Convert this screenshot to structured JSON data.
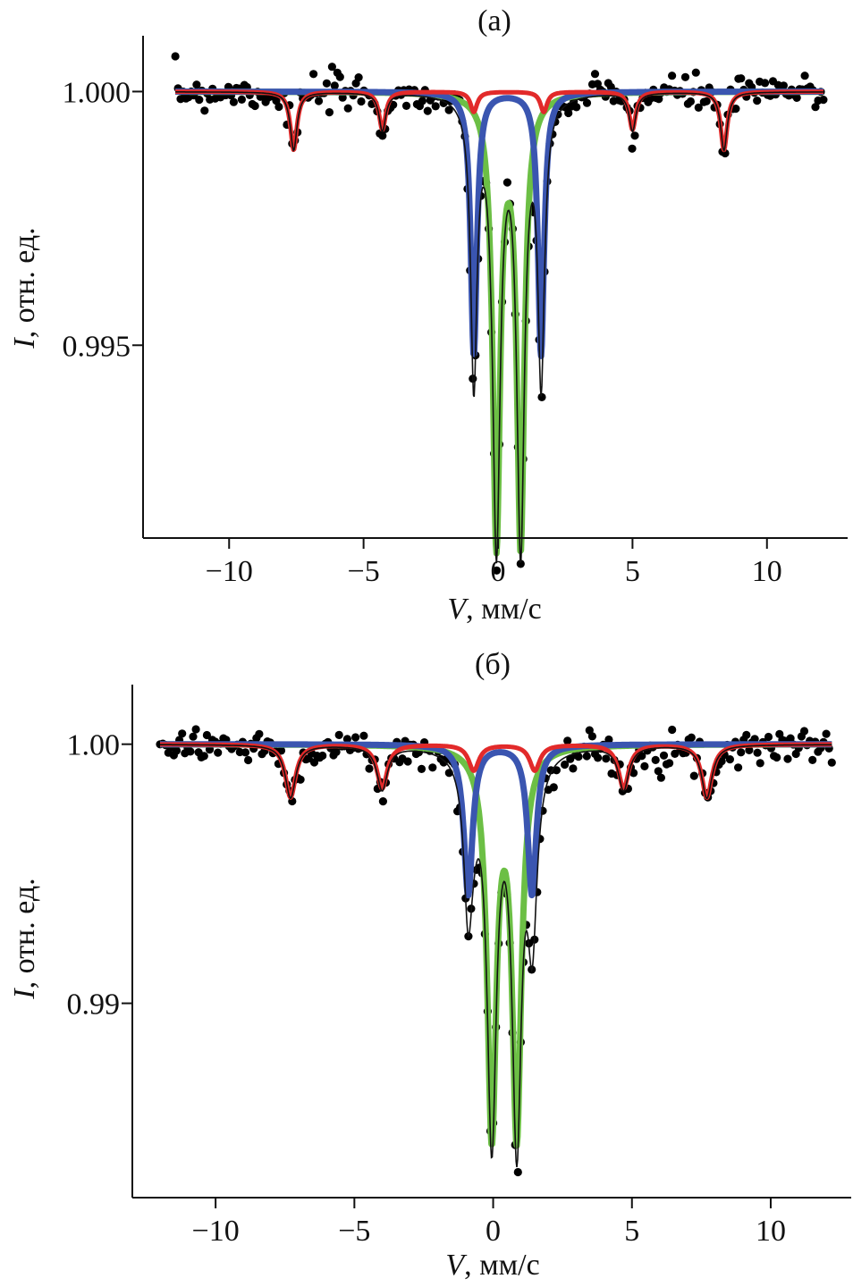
{
  "colors": {
    "data_points": "#000000",
    "fit_total": "#111111",
    "doublet_green": "#6cbf45",
    "doublet_blue": "#3a55b0",
    "sextet_red": "#e22a2a"
  },
  "chart_data": [
    {
      "type": "scatter",
      "panel_label": "(a)",
      "xlabel_var": "V",
      "xlabel_unit": ", мм/с",
      "ylabel_var": "I",
      "ylabel_unit": ", отн. ед.",
      "xlim": [
        -13.2,
        13.0
      ],
      "ylim": [
        0.9912,
        1.0011
      ],
      "xticks": [
        -10,
        -5,
        0,
        5,
        10
      ],
      "xtick_labels": [
        "−10",
        "−5",
        "0",
        "5",
        "10"
      ],
      "yticks": [
        0.995,
        1.0
      ],
      "ytick_labels": [
        "0.995",
        "1.000"
      ],
      "x_range": [
        -12.0,
        12.1
      ],
      "series": [
        {
          "role": "doublet",
          "color": "green",
          "components": [
            {
              "center": -0.06,
              "width": 0.34,
              "depth": 0.0088
            },
            {
              "center": 0.84,
              "width": 0.34,
              "depth": 0.0088
            }
          ]
        },
        {
          "role": "doublet",
          "color": "blue",
          "components": [
            {
              "center": -0.9,
              "width": 0.28,
              "depth": 0.0052
            },
            {
              "center": 1.6,
              "width": 0.28,
              "depth": 0.0052
            }
          ]
        },
        {
          "role": "sextet",
          "color": "red",
          "components": [
            {
              "center": -7.6,
              "width": 0.3,
              "depth": 0.00115
            },
            {
              "center": -4.3,
              "width": 0.3,
              "depth": 0.00075
            },
            {
              "center": -0.9,
              "width": 0.3,
              "depth": 0.0004
            },
            {
              "center": 1.7,
              "width": 0.3,
              "depth": 0.0004
            },
            {
              "center": 5.0,
              "width": 0.3,
              "depth": 0.00075
            },
            {
              "center": 8.4,
              "width": 0.3,
              "depth": 0.00115
            }
          ]
        }
      ]
    },
    {
      "type": "scatter",
      "panel_label": "(б)",
      "xlabel_var": "V",
      "xlabel_unit": ", мм/с",
      "ylabel_var": "I",
      "ylabel_unit": ", отн. ед.",
      "xlim": [
        -13.0,
        12.9
      ],
      "ylim": [
        0.9825,
        1.0023
      ],
      "xticks": [
        -10,
        -5,
        0,
        5,
        10
      ],
      "xtick_labels": [
        "−10",
        "−5",
        "0",
        "5",
        "10"
      ],
      "yticks": [
        0.99,
        1.0
      ],
      "ytick_labels": [
        "0.99",
        "1.00"
      ],
      "x_range": [
        -12.0,
        12.2
      ],
      "series": [
        {
          "role": "doublet",
          "color": "green",
          "components": [
            {
              "center": -0.05,
              "width": 0.4,
              "depth": 0.0148
            },
            {
              "center": 0.85,
              "width": 0.4,
              "depth": 0.0148
            }
          ]
        },
        {
          "role": "doublet",
          "color": "blue",
          "components": [
            {
              "center": -0.9,
              "width": 0.38,
              "depth": 0.0058
            },
            {
              "center": 1.4,
              "width": 0.38,
              "depth": 0.0058
            }
          ]
        },
        {
          "role": "sextet",
          "color": "red",
          "components": [
            {
              "center": -7.3,
              "width": 0.45,
              "depth": 0.00205
            },
            {
              "center": -4.0,
              "width": 0.45,
              "depth": 0.0017
            },
            {
              "center": -0.7,
              "width": 0.45,
              "depth": 0.001
            },
            {
              "center": 1.5,
              "width": 0.45,
              "depth": 0.001
            },
            {
              "center": 4.7,
              "width": 0.45,
              "depth": 0.0017
            },
            {
              "center": 7.7,
              "width": 0.45,
              "depth": 0.00205
            }
          ]
        }
      ]
    }
  ]
}
